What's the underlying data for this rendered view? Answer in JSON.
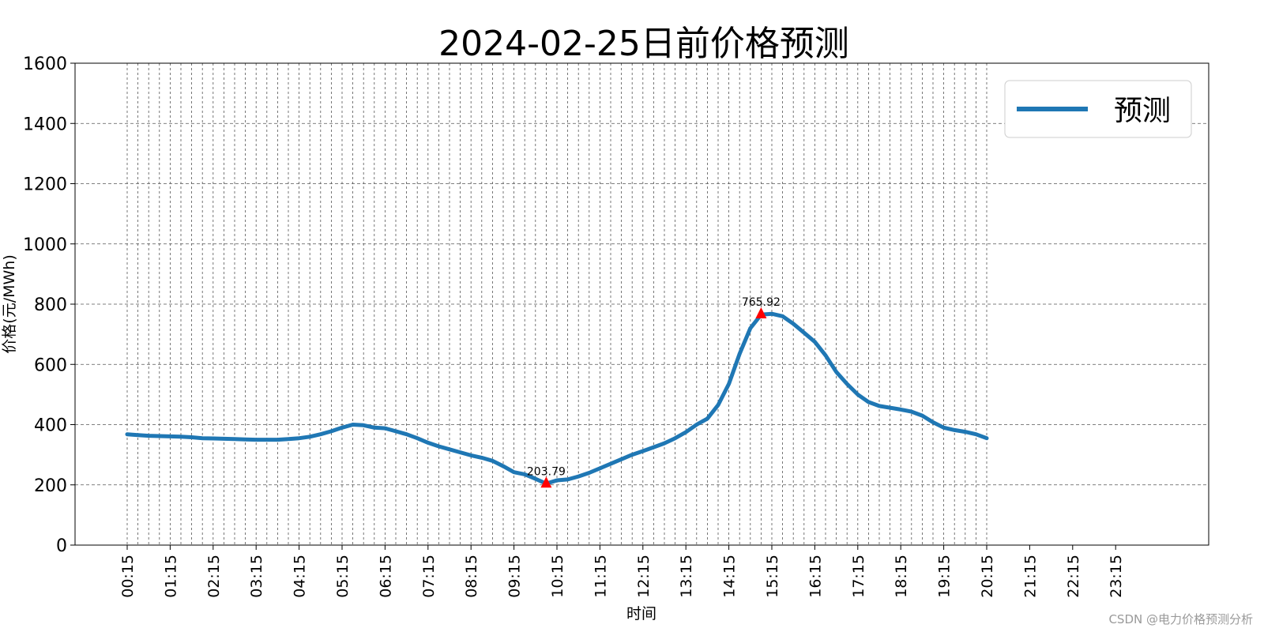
{
  "chart_data": {
    "type": "line",
    "title": "2024-02-25日前价格预测",
    "xlabel": "时间",
    "ylabel": "价格(元/MWh)",
    "ylim": [
      0,
      1600
    ],
    "yticks": [
      0,
      200,
      400,
      600,
      800,
      1000,
      1200,
      1400,
      1600
    ],
    "xtick_labels": [
      "00:15",
      "01:15",
      "02:15",
      "03:15",
      "04:15",
      "05:15",
      "06:15",
      "07:15",
      "08:15",
      "09:15",
      "10:15",
      "11:15",
      "12:15",
      "13:15",
      "14:15",
      "15:15",
      "16:15",
      "17:15",
      "18:15",
      "19:15",
      "20:15",
      "21:15",
      "22:15",
      "23:15"
    ],
    "x_interval": "15min (every 15 minutes, 00:15–24:00, hourly gridlines dashed)",
    "grid": true,
    "legend_position": "top-right",
    "series": [
      {
        "name": "预测",
        "color": "#1f77b4",
        "values": [
          368,
          365,
          363,
          362,
          361,
          360,
          358,
          355,
          354,
          353,
          352,
          351,
          350,
          350,
          350,
          352,
          355,
          360,
          368,
          378,
          390,
          400,
          398,
          390,
          388,
          378,
          368,
          355,
          340,
          328,
          318,
          308,
          298,
          290,
          280,
          262,
          242,
          235,
          220,
          204,
          215,
          218,
          228,
          240,
          255,
          270,
          285,
          300,
          312,
          325,
          338,
          355,
          375,
          400,
          420,
          465,
          535,
          635,
          720,
          765,
          768,
          760,
          735,
          705,
          675,
          630,
          575,
          535,
          500,
          475,
          462,
          456,
          450,
          443,
          430,
          408,
          390,
          382,
          376,
          368,
          355
        ]
      }
    ],
    "annotations": [
      {
        "label": "203.79",
        "value": 203.79,
        "index": 39,
        "marker": "triangle",
        "color": "#ff0000"
      },
      {
        "label": "765.92",
        "value": 765.92,
        "index": 59,
        "marker": "triangle",
        "color": "#ff0000"
      }
    ]
  },
  "watermark": "CSDN @电力价格预测分析"
}
